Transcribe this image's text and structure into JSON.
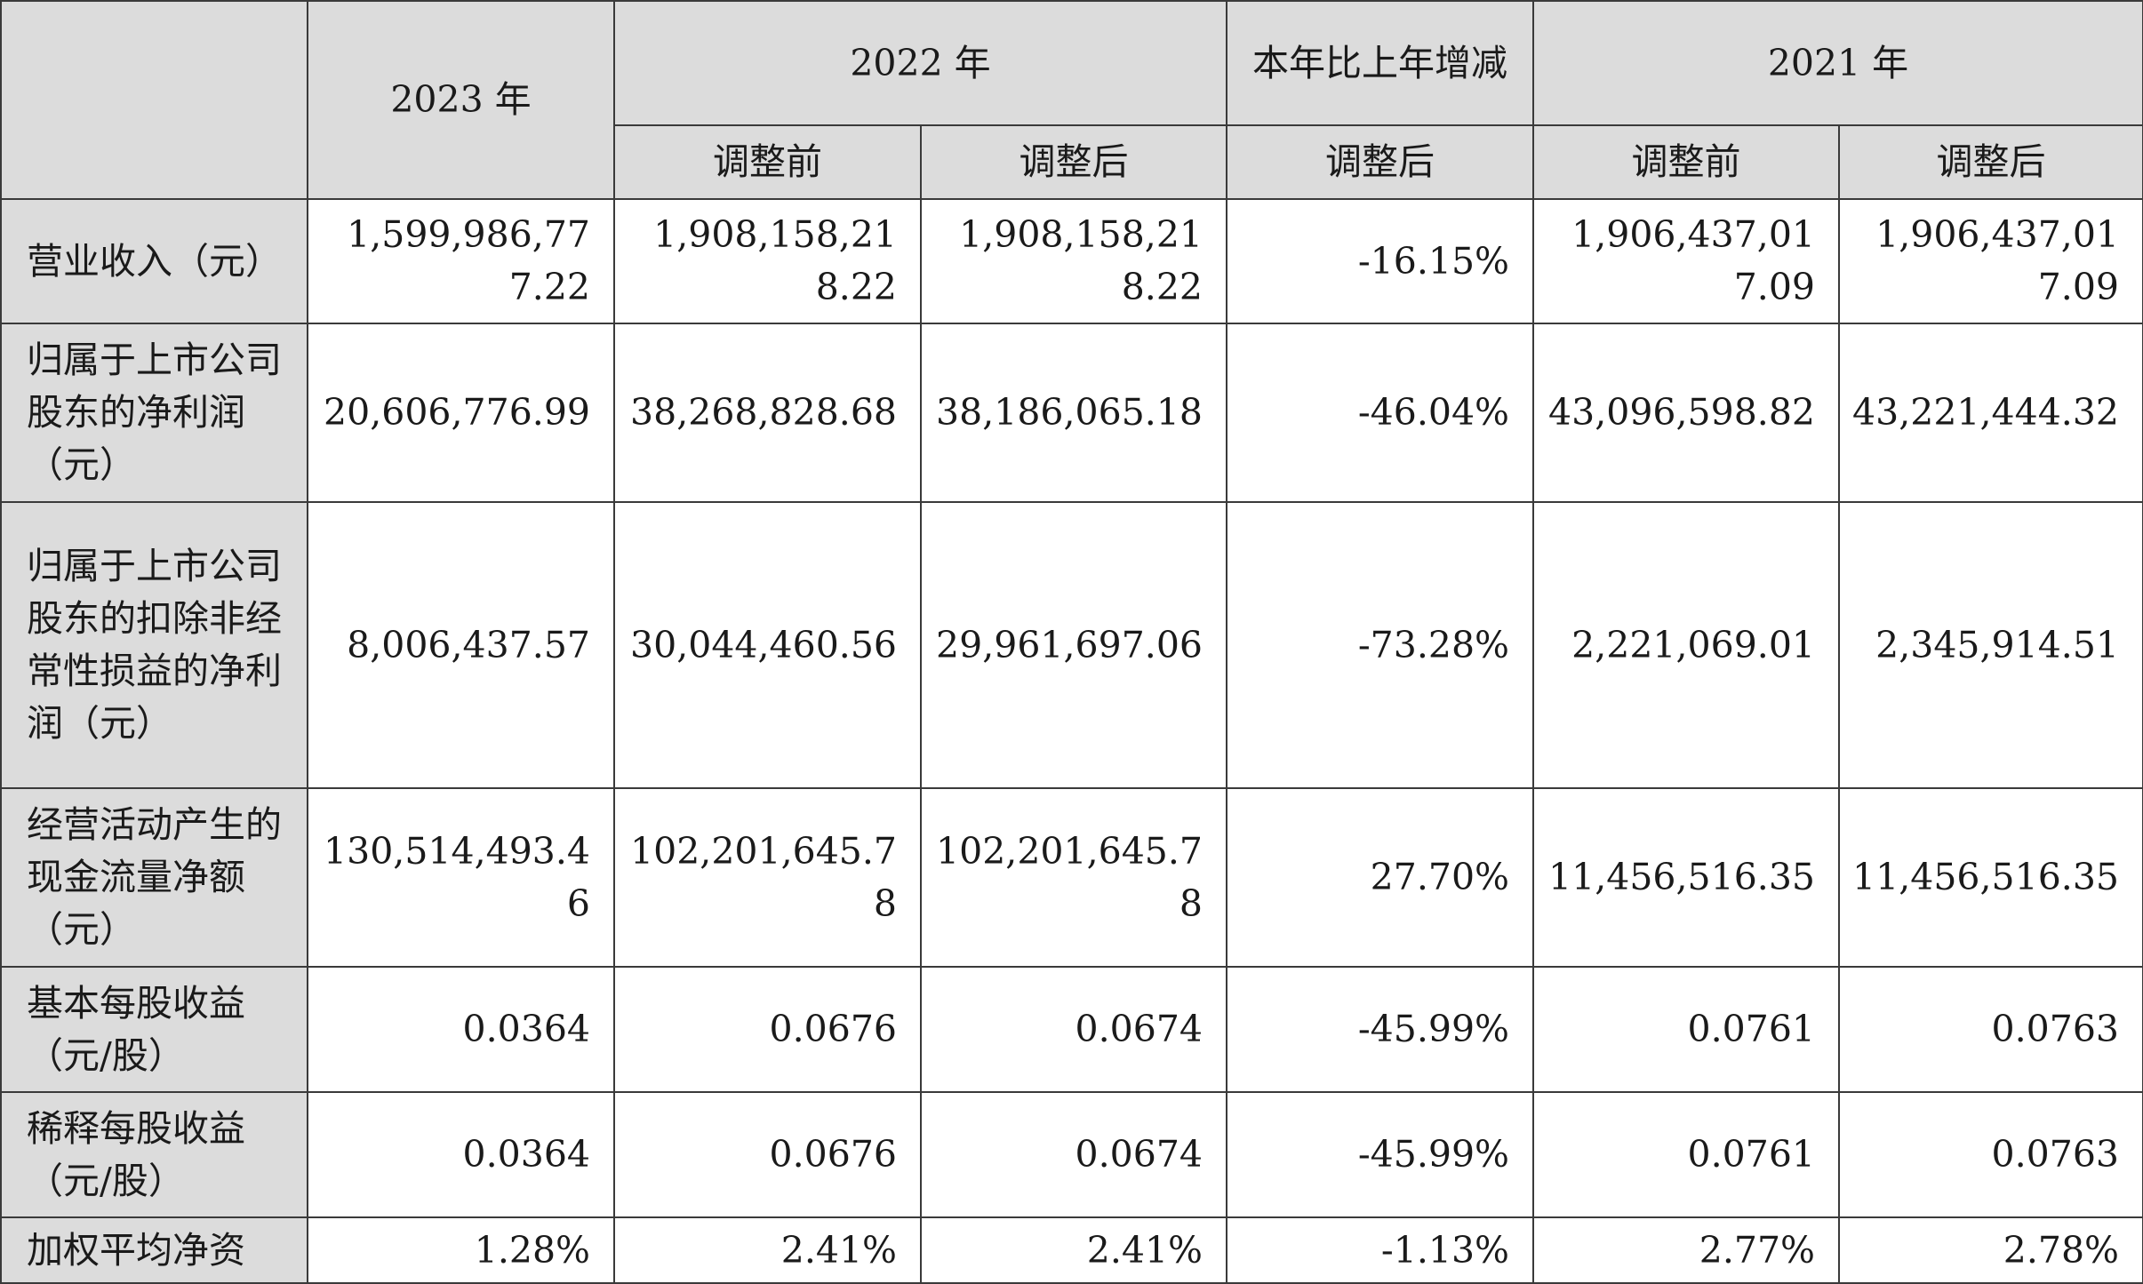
{
  "header": {
    "corner": "",
    "year_2023": "2023 年",
    "year_2022": "2022 年",
    "yoy_change": "本年比上年增减",
    "year_2021": "2021 年",
    "before_adj_2022": "调整前",
    "after_adj_2022": "调整后",
    "after_adj_yoy": "调整后",
    "before_adj_2021": "调整前",
    "after_adj_2021": "调整后"
  },
  "rows": [
    {
      "label": "营业收入（元）",
      "y2023": "1,599,986,777.22",
      "y2022_before": "1,908,158,218.22",
      "y2022_after": "1,908,158,218.22",
      "change": "-16.15%",
      "y2021_before": "1,906,437,017.09",
      "y2021_after": "1,906,437,017.09"
    },
    {
      "label": "归属于上市公司股东的净利润（元）",
      "y2023": "20,606,776.99",
      "y2022_before": "38,268,828.68",
      "y2022_after": "38,186,065.18",
      "change": "-46.04%",
      "y2021_before": "43,096,598.82",
      "y2021_after": "43,221,444.32"
    },
    {
      "label": "归属于上市公司股东的扣除非经常性损益的净利润（元）",
      "y2023": "8,006,437.57",
      "y2022_before": "30,044,460.56",
      "y2022_after": "29,961,697.06",
      "change": "-73.28%",
      "y2021_before": "2,221,069.01",
      "y2021_after": "2,345,914.51"
    },
    {
      "label": "经营活动产生的现金流量净额（元）",
      "y2023": "130,514,493.46",
      "y2022_before": "102,201,645.78",
      "y2022_after": "102,201,645.78",
      "change": "27.70%",
      "y2021_before": "11,456,516.35",
      "y2021_after": "11,456,516.35"
    },
    {
      "label": "基本每股收益（元/股）",
      "y2023": "0.0364",
      "y2022_before": "0.0676",
      "y2022_after": "0.0674",
      "change": "-45.99%",
      "y2021_before": "0.0761",
      "y2021_after": "0.0763"
    },
    {
      "label": "稀释每股收益（元/股）",
      "y2023": "0.0364",
      "y2022_before": "0.0676",
      "y2022_after": "0.0674",
      "change": "-45.99%",
      "y2021_before": "0.0761",
      "y2021_after": "0.0763"
    },
    {
      "label": "加权平均净资",
      "y2023": "1.28%",
      "y2022_before": "2.41%",
      "y2022_after": "2.41%",
      "change": "-1.13%",
      "y2021_before": "2.77%",
      "y2021_after": "2.78%"
    }
  ]
}
